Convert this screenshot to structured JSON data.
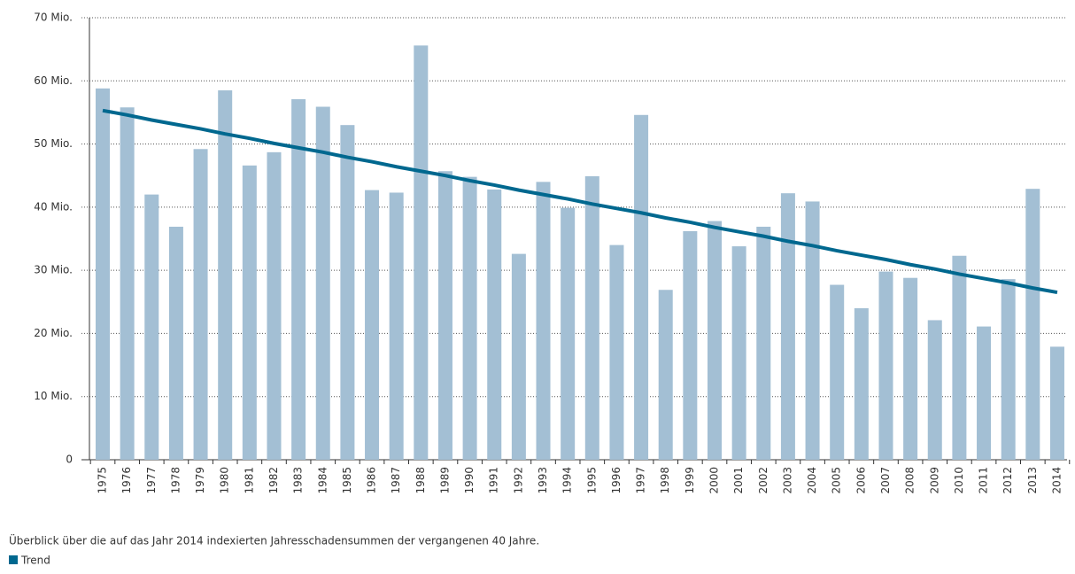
{
  "chart_data": {
    "type": "bar",
    "categories": [
      "1975",
      "1976",
      "1977",
      "1978",
      "1979",
      "1980",
      "1981",
      "1982",
      "1983",
      "1984",
      "1985",
      "1986",
      "1987",
      "1988",
      "1989",
      "1990",
      "1991",
      "1992",
      "1993",
      "1994",
      "1995",
      "1996",
      "1997",
      "1998",
      "1999",
      "2000",
      "2001",
      "2002",
      "2003",
      "2004",
      "2005",
      "2006",
      "2007",
      "2008",
      "2009",
      "2010",
      "2011",
      "2012",
      "2013",
      "2014"
    ],
    "values": [
      58.8,
      55.8,
      42,
      36.9,
      49.2,
      58.5,
      46.6,
      48.7,
      57.1,
      55.9,
      53,
      42.7,
      42.3,
      65.6,
      45.7,
      44.8,
      42.8,
      32.6,
      44,
      39.9,
      44.9,
      34,
      54.6,
      26.9,
      36.2,
      37.8,
      33.8,
      36.9,
      42.2,
      40.9,
      27.7,
      24,
      29.8,
      28.8,
      22.1,
      32.3,
      21.1,
      28.6,
      42.9,
      17.9
    ],
    "color": "#a3bfd4",
    "trend": {
      "name": "Trend",
      "color": "#00688f",
      "values": [
        55.3,
        54.6,
        53.8,
        53.1,
        52.4,
        51.6,
        50.9,
        50.1,
        49.4,
        48.7,
        47.9,
        47.2,
        46.4,
        45.7,
        45.0,
        44.2,
        43.5,
        42.7,
        42.0,
        41.3,
        40.5,
        39.8,
        39.1,
        38.3,
        37.6,
        36.8,
        36.1,
        35.4,
        34.6,
        33.9,
        33.1,
        32.4,
        31.7,
        30.9,
        30.2,
        29.4,
        28.7,
        28.0,
        27.2,
        26.5
      ]
    },
    "ylim": [
      0,
      70
    ],
    "yticks": [
      0,
      {
        "value": 10,
        "label": "10 Mio."
      },
      {
        "value": 20,
        "label": "20 Mio."
      },
      {
        "value": 30,
        "label": "30 Mio."
      },
      {
        "value": 40,
        "label": "40 Mio."
      },
      {
        "value": 50,
        "label": "50 Mio."
      },
      {
        "value": 60,
        "label": "60 Mio."
      },
      {
        "value": 70,
        "label": "70 Mio."
      }
    ],
    "grid": true,
    "caption": "Überblick über die auf das Jahr 2014 indexierten Jahresschadensummen der vergangenen 40 Jahre."
  }
}
